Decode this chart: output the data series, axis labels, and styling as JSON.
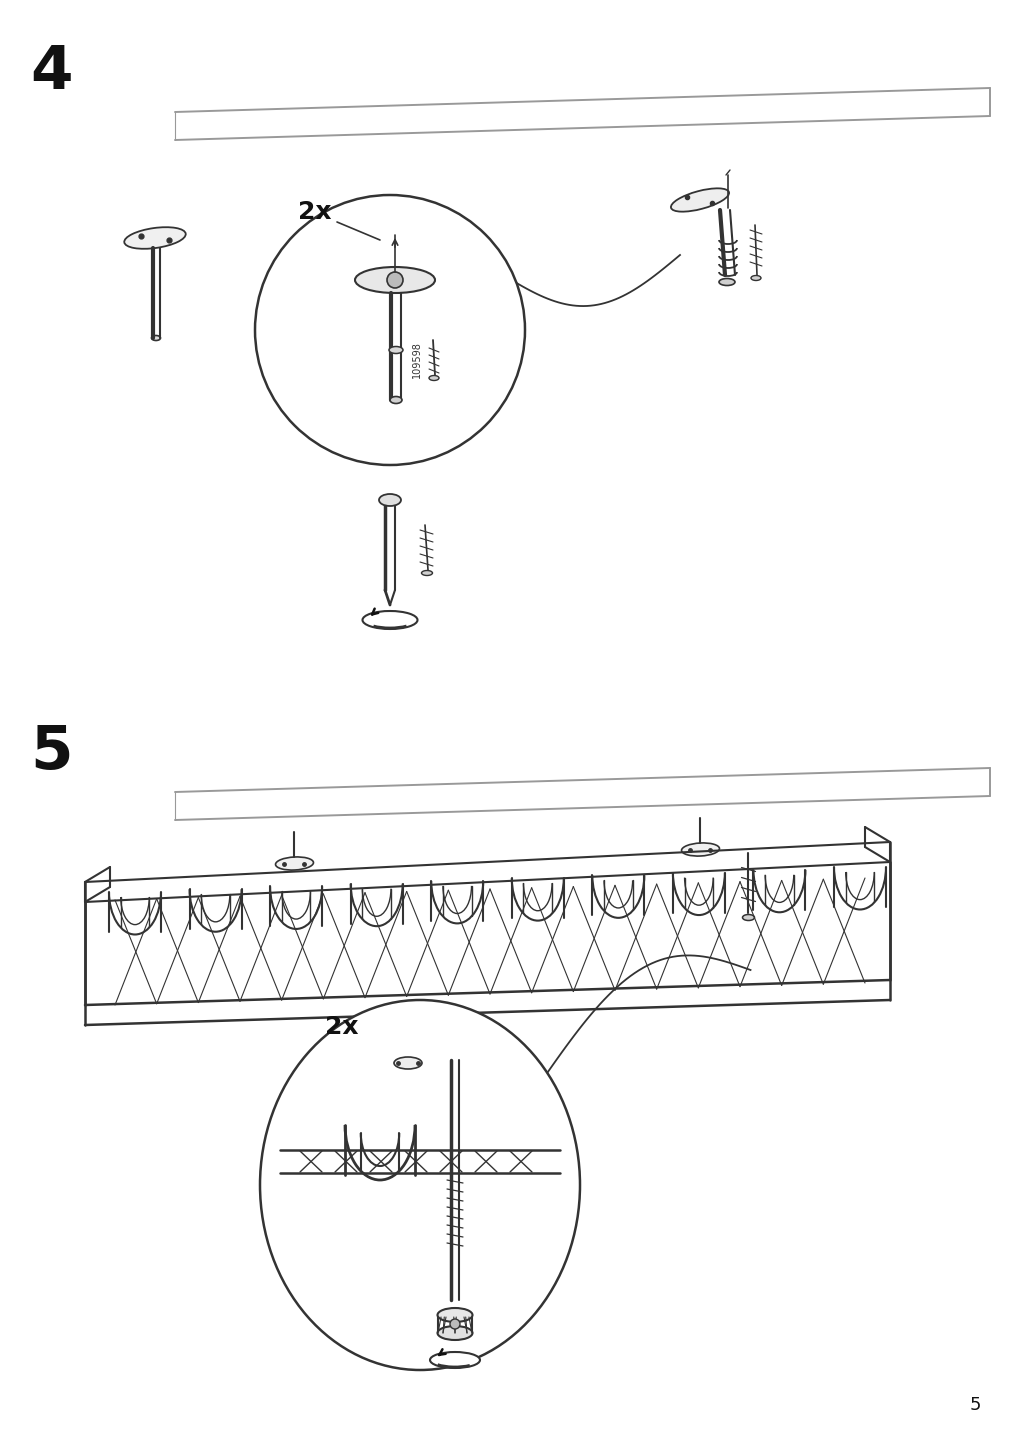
{
  "background_color": "#ffffff",
  "page_number": "5",
  "step4_label": "4",
  "step5_label": "5",
  "step4_2x_label": "2x",
  "step5_2x_label": "2x",
  "part_number": "109598",
  "line_color": "#333333",
  "light_line_color": "#999999",
  "dark_color": "#111111",
  "figsize": [
    10.12,
    14.32
  ],
  "dpi": 100
}
